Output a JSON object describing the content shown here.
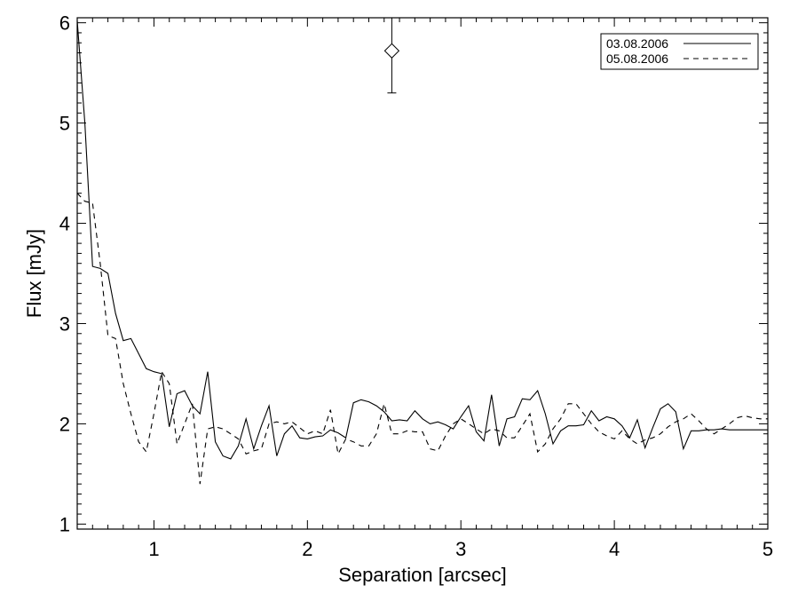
{
  "chart_data": {
    "type": "line",
    "xlabel": "Separation [arcsec]",
    "ylabel": "Flux [mJy]",
    "xlim": [
      0.5,
      5.0
    ],
    "ylim": [
      0.95,
      6.05
    ],
    "x_ticks": [
      1,
      2,
      3,
      4,
      5
    ],
    "x_tick_labels": [
      "1",
      "2",
      "3",
      "4",
      "5"
    ],
    "y_ticks": [
      1,
      2,
      3,
      4,
      5,
      6
    ],
    "y_tick_labels": [
      "1",
      "2",
      "3",
      "4",
      "5",
      "6"
    ],
    "grid": false,
    "legend_position": "top-right",
    "series": [
      {
        "name": "03.08.2006",
        "style": "solid",
        "color": "#000000",
        "x": [
          0.5,
          0.55,
          0.6,
          0.65,
          0.7,
          0.75,
          0.8,
          0.85,
          0.9,
          0.95,
          1.0,
          1.05,
          1.1,
          1.15,
          1.2,
          1.25,
          1.3,
          1.35,
          1.4,
          1.45,
          1.5,
          1.55,
          1.6,
          1.65,
          1.7,
          1.75,
          1.8,
          1.85,
          1.9,
          1.95,
          2.0,
          2.05,
          2.1,
          2.15,
          2.2,
          2.25,
          2.3,
          2.35,
          2.4,
          2.45,
          2.5,
          2.55,
          2.6,
          2.65,
          2.7,
          2.75,
          2.8,
          2.85,
          2.9,
          2.95,
          3.0,
          3.05,
          3.1,
          3.15,
          3.2,
          3.25,
          3.3,
          3.35,
          3.4,
          3.45,
          3.5,
          3.55,
          3.6,
          3.65,
          3.7,
          3.75,
          3.8,
          3.85,
          3.9,
          3.95,
          4.0,
          4.05,
          4.1,
          4.15,
          4.2,
          4.25,
          4.3,
          4.35,
          4.4,
          4.45,
          4.5,
          4.55,
          4.6,
          4.65,
          4.7,
          4.75,
          4.8,
          4.85,
          4.9,
          4.95,
          5.0
        ],
        "values": [
          6.02,
          5.0,
          3.57,
          3.55,
          3.5,
          3.1,
          2.83,
          2.85,
          2.7,
          2.55,
          2.52,
          2.5,
          1.97,
          2.3,
          2.33,
          2.18,
          2.1,
          2.52,
          1.82,
          1.68,
          1.65,
          1.78,
          2.05,
          1.75,
          1.98,
          2.18,
          1.68,
          1.9,
          1.98,
          1.86,
          1.85,
          1.87,
          1.88,
          1.94,
          1.91,
          1.86,
          2.21,
          2.24,
          2.22,
          2.18,
          2.12,
          2.03,
          2.04,
          2.03,
          2.13,
          2.05,
          2.0,
          2.02,
          1.99,
          1.95,
          2.07,
          2.18,
          1.92,
          1.83,
          2.29,
          1.78,
          2.05,
          2.07,
          2.25,
          2.24,
          2.33,
          2.1,
          1.8,
          1.93,
          1.98,
          1.98,
          1.99,
          2.13,
          2.03,
          2.07,
          2.05,
          1.98,
          1.86,
          2.04,
          1.76,
          1.96,
          2.15,
          2.2,
          2.12,
          1.75,
          1.93,
          1.93,
          1.94,
          1.94,
          1.95,
          1.94,
          1.94,
          1.94,
          1.94,
          1.94,
          1.94
        ]
      },
      {
        "name": "05.08.2006",
        "style": "dashed",
        "color": "#000000",
        "x": [
          0.5,
          0.55,
          0.6,
          0.65,
          0.7,
          0.75,
          0.8,
          0.85,
          0.9,
          0.95,
          1.0,
          1.05,
          1.1,
          1.15,
          1.2,
          1.25,
          1.3,
          1.35,
          1.4,
          1.45,
          1.5,
          1.55,
          1.6,
          1.65,
          1.7,
          1.75,
          1.8,
          1.85,
          1.9,
          1.95,
          2.0,
          2.05,
          2.1,
          2.15,
          2.2,
          2.25,
          2.3,
          2.35,
          2.4,
          2.45,
          2.5,
          2.55,
          2.6,
          2.65,
          2.7,
          2.75,
          2.8,
          2.85,
          2.9,
          2.95,
          3.0,
          3.05,
          3.1,
          3.15,
          3.2,
          3.25,
          3.3,
          3.35,
          3.4,
          3.45,
          3.5,
          3.55,
          3.6,
          3.65,
          3.7,
          3.75,
          3.8,
          3.85,
          3.9,
          3.95,
          4.0,
          4.05,
          4.1,
          4.15,
          4.2,
          4.25,
          4.3,
          4.35,
          4.4,
          4.45,
          4.5,
          4.55,
          4.6,
          4.65,
          4.7,
          4.75,
          4.8,
          4.85,
          4.9,
          4.95,
          5.0
        ],
        "values": [
          4.3,
          4.22,
          4.2,
          3.6,
          2.88,
          2.85,
          2.4,
          2.1,
          1.82,
          1.72,
          2.1,
          2.52,
          2.4,
          1.8,
          2.0,
          2.2,
          1.4,
          1.95,
          1.97,
          1.95,
          1.9,
          1.85,
          1.7,
          1.73,
          1.75,
          2.0,
          2.02,
          2.0,
          2.02,
          1.96,
          1.9,
          1.93,
          1.9,
          2.14,
          1.7,
          1.85,
          1.82,
          1.78,
          1.78,
          1.9,
          2.2,
          1.9,
          1.9,
          1.93,
          1.92,
          1.92,
          1.75,
          1.73,
          1.88,
          2.0,
          2.05,
          2.0,
          1.95,
          1.9,
          1.95,
          1.93,
          1.86,
          1.86,
          1.98,
          2.1,
          1.72,
          1.8,
          1.95,
          2.05,
          2.2,
          2.2,
          2.1,
          2.0,
          1.92,
          1.88,
          1.85,
          1.93,
          1.85,
          1.8,
          1.84,
          1.86,
          1.9,
          1.97,
          2.02,
          2.05,
          2.1,
          2.03,
          1.95,
          1.9,
          1.95,
          2.0,
          2.06,
          2.08,
          2.06,
          2.05,
          2.05
        ]
      }
    ],
    "annotations": [
      {
        "type": "errorbar",
        "marker": "diamond",
        "x": 2.55,
        "y": 5.72,
        "y_low": 5.3,
        "y_high": 6.05
      }
    ]
  }
}
